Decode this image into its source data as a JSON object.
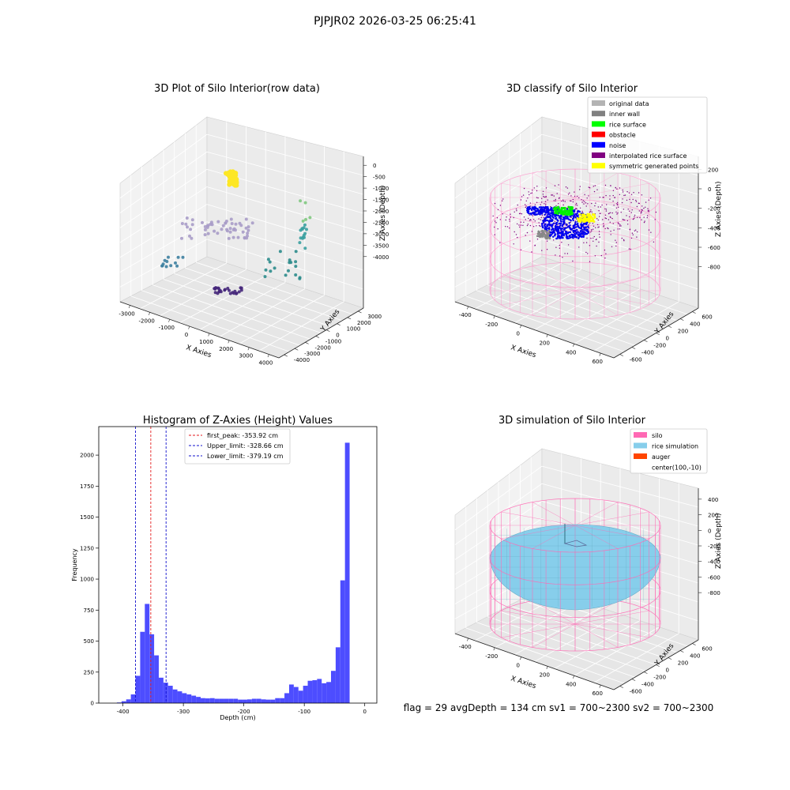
{
  "suptitle": "PJPJR02 2026-03-25 06:25:41",
  "footer": "flag = 29  avgDepth = 134 cm  sv1 = 700~2300  sv2 = 700~2300",
  "colors": {
    "histogram": "#4d4dff",
    "peak": "#e41a1c",
    "limits": "#1010cc",
    "silo": "#ff69b4",
    "rice": "#87ceeb",
    "noise": "#0000ee",
    "rice_surface": "#00ee00",
    "symmetric": "#ffff00",
    "inner_wall": "#888888",
    "interpolated": "#800080"
  },
  "chart_data": [
    {
      "type": "scatter",
      "title": "3D Plot of Silo Interior(row data)",
      "xlabel": "X Axies",
      "ylabel": "Y Axies",
      "zlabel": "Z Axies (Depth)",
      "x_ticks": [
        "-3000",
        "-2000",
        "-1000",
        "0",
        "1000",
        "2000",
        "3000",
        "4000"
      ],
      "y_ticks": [
        "-4000",
        "-3000",
        "-2000",
        "-1000",
        "0",
        "1000",
        "2000",
        "3000"
      ],
      "z_ticks": [
        "0",
        "-500",
        "-1000",
        "-1500",
        "-2000",
        "-2500",
        "-3000",
        "-3500",
        "-4000"
      ],
      "xlim": [
        -3500,
        4500
      ],
      "ylim": [
        -4000,
        3500
      ],
      "zlim": [
        -4300,
        200
      ]
    },
    {
      "type": "scatter",
      "title": "3D classify of Silo Interior",
      "xlabel": "X Axies",
      "ylabel": "Y Axies",
      "zlabel": "Z Axies (Depth)",
      "x_ticks": [
        "-400",
        "-200",
        "0",
        "200",
        "400",
        "600"
      ],
      "y_ticks": [
        "-600",
        "-400",
        "-200",
        "0",
        "200",
        "400",
        "600"
      ],
      "z_ticks": [
        "200",
        "0",
        "-200",
        "-400",
        "-600",
        "-800"
      ],
      "legend": [
        "original data",
        "inner wall",
        "rice surface",
        "obstacle",
        "noise",
        "interpolated rice surface",
        "symmetric generated points"
      ],
      "legend_colors": [
        "#b3b3b3",
        "#808080",
        "#00ff00",
        "#ff0000",
        "#0000ff",
        "#800080",
        "#ffff00"
      ],
      "legend_position": "top-right"
    },
    {
      "type": "bar",
      "title": "Histogram of Z-Axies (Height) Values",
      "xlabel": "Depth (cm)",
      "ylabel": "Frequency",
      "xlim": [
        -440,
        20
      ],
      "ylim": [
        0,
        2230
      ],
      "x_ticks": [
        -400,
        -300,
        -200,
        -100,
        0
      ],
      "y_ticks": [
        0,
        250,
        500,
        750,
        1000,
        1250,
        1500,
        1750,
        2000
      ],
      "bin_start": -410,
      "bin_width": 7.7,
      "values": [
        5,
        15,
        30,
        70,
        220,
        575,
        800,
        555,
        385,
        205,
        165,
        140,
        110,
        95,
        80,
        70,
        60,
        50,
        40,
        38,
        40,
        35,
        35,
        35,
        35,
        35,
        28,
        28,
        30,
        35,
        35,
        30,
        28,
        28,
        40,
        40,
        80,
        150,
        130,
        100,
        140,
        180,
        185,
        195,
        160,
        170,
        260,
        450,
        990,
        2100
      ],
      "lines": [
        {
          "label": "first_peak: -353.92 cm",
          "x": -353.92,
          "style": "peak"
        },
        {
          "label": "Upper_limit: -328.66 cm",
          "x": -328.66,
          "style": "limits"
        },
        {
          "label": "Lower_limit: -379.19 cm",
          "x": -379.19,
          "style": "limits"
        }
      ],
      "legend_position": "top-center"
    },
    {
      "type": "scatter",
      "title": "3D simulation of Silo Interior",
      "xlabel": "X Axies",
      "ylabel": "Y Axies",
      "zlabel": "Z Axies (Depth)",
      "x_ticks": [
        "-400",
        "-200",
        "0",
        "200",
        "400",
        "600"
      ],
      "y_ticks": [
        "-600",
        "-400",
        "-200",
        "0",
        "200",
        "400",
        "600"
      ],
      "z_ticks": [
        "400",
        "200",
        "0",
        "-200",
        "-400",
        "-600",
        "-800"
      ],
      "legend": [
        "silo",
        "rice simulation",
        "auger",
        "center(100,-10)"
      ],
      "legend_colors": [
        "#ff69b4",
        "#87ceeb",
        "#ff4500",
        "none"
      ],
      "legend_position": "top-right"
    }
  ]
}
